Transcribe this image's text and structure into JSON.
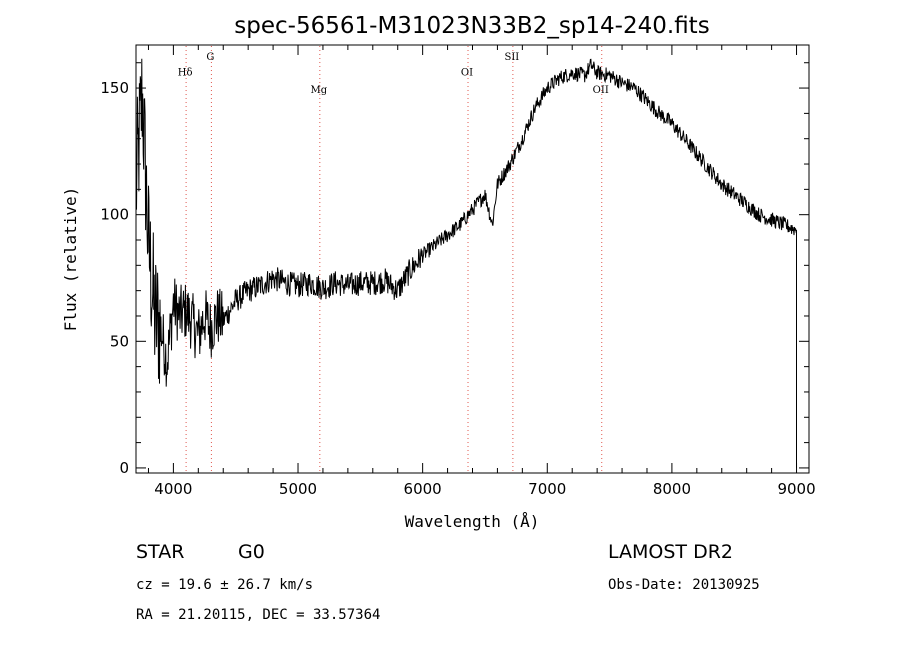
{
  "chart_data": {
    "type": "line",
    "title": "spec-56561-M31023N33B2_sp14-240.fits",
    "xlabel": "Wavelength (Å)",
    "ylabel": "Flux (relative)",
    "xlim": [
      3700,
      9100
    ],
    "ylim": [
      -2,
      167
    ],
    "x_ticks": [
      4000,
      5000,
      6000,
      7000,
      8000,
      9000
    ],
    "y_ticks": [
      0,
      50,
      100,
      150
    ],
    "x_tick_labels": [
      "4000",
      "5000",
      "6000",
      "7000",
      "8000",
      "9000"
    ],
    "y_tick_labels": [
      "0",
      "50",
      "100",
      "150"
    ],
    "series": [
      {
        "x": [
          3700,
          3750,
          3800,
          3850,
          3900,
          3950,
          4000,
          4050,
          4100,
          4150,
          4200,
          4250,
          4300,
          4350,
          4400,
          4500,
          4600,
          4700,
          4800,
          4900,
          5000,
          5100,
          5200,
          5300,
          5400,
          5500,
          5600,
          5700,
          5800,
          5900,
          6000,
          6100,
          6200,
          6300,
          6400,
          6500,
          6560,
          6600,
          6700,
          6800,
          6900,
          7000,
          7100,
          7200,
          7300,
          7350,
          7400,
          7500,
          7600,
          7700,
          7800,
          7900,
          8000,
          8100,
          8200,
          8300,
          8400,
          8500,
          8600,
          8700,
          8800,
          8900,
          9000
        ],
        "y": [
          110,
          148,
          88,
          60,
          55,
          42,
          65,
          60,
          62,
          58,
          52,
          60,
          55,
          60,
          58,
          66,
          70,
          72,
          75,
          73,
          72,
          73,
          71,
          73,
          72,
          73,
          73,
          74,
          70,
          78,
          84,
          88,
          92,
          96,
          102,
          108,
          96,
          112,
          120,
          130,
          142,
          150,
          154,
          156,
          155,
          159,
          156,
          155,
          152,
          150,
          145,
          140,
          136,
          130,
          124,
          118,
          112,
          108,
          104,
          100,
          98,
          96,
          94
        ]
      }
    ],
    "spectral_lines": [
      {
        "label": "Hδ",
        "x": 4102,
        "label_y": 155
      },
      {
        "label": "G",
        "x": 4305,
        "label_y": 161
      },
      {
        "label": "Mg",
        "x": 5175,
        "label_y": 148
      },
      {
        "label": "OI",
        "x": 6364,
        "label_y": 155
      },
      {
        "label": "SII",
        "x": 6724,
        "label_y": 161
      },
      {
        "label": "OII",
        "x": 7437,
        "label_y": 148
      }
    ],
    "grid": false,
    "line_color": "#000000",
    "marker_color": "#e0584f"
  },
  "info": {
    "object_class": "STAR",
    "subclass": "G0",
    "survey": "LAMOST DR2",
    "redshift": "cz = 19.6 ± 26.7 km/s",
    "obs_date": "Obs-Date: 20130925",
    "coords": "RA =  21.20115, DEC =  33.57364"
  }
}
